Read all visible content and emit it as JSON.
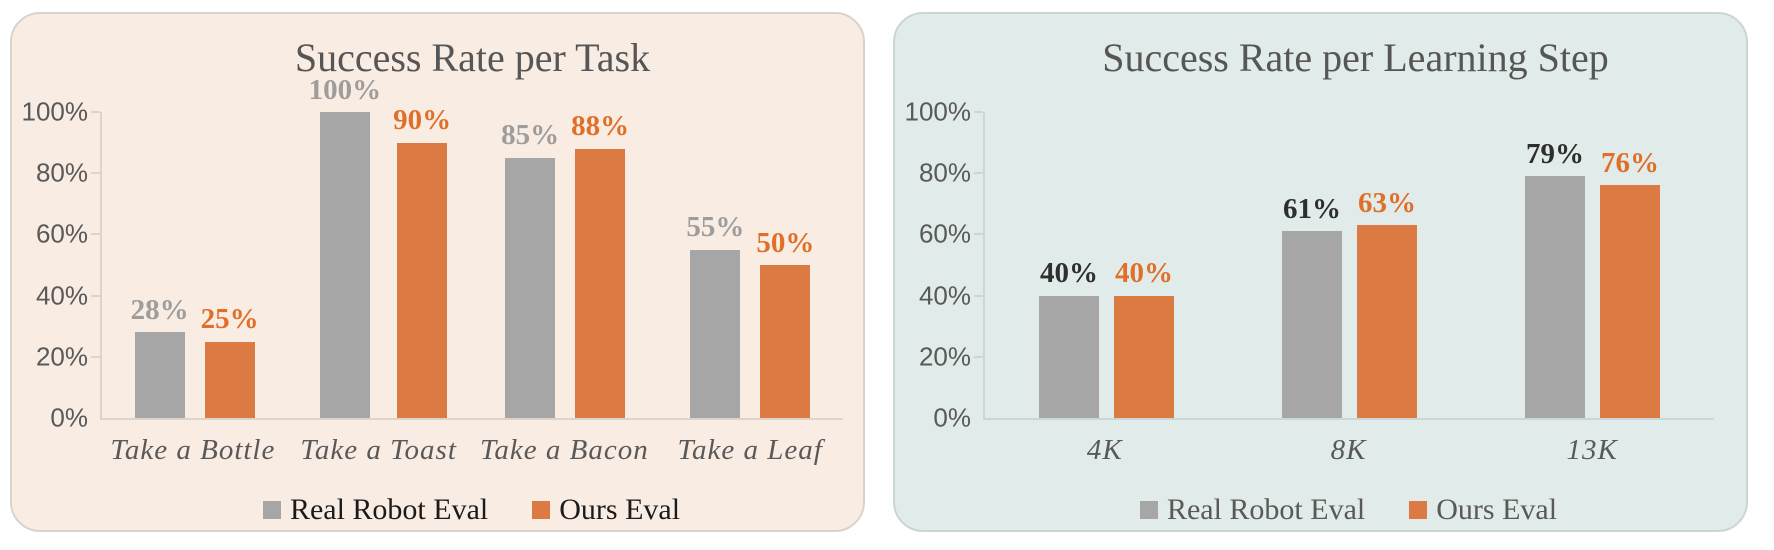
{
  "page": {
    "background": "#ffffff"
  },
  "chart_data": [
    {
      "type": "bar",
      "title": "Success Rate per Task",
      "categories": [
        "Take a Bottle",
        "Take a Toast",
        "Take a Bacon",
        "Take a Leaf"
      ],
      "series": [
        {
          "name": "Real Robot Eval",
          "color": "#a6a6a6",
          "label_color": "#9d9d9d",
          "values": [
            28,
            100,
            85,
            55
          ]
        },
        {
          "name": "Ours Eval",
          "color": "#db7b43",
          "label_color": "#df702a",
          "values": [
            25,
            90,
            88,
            50
          ]
        }
      ],
      "value_suffix": "%",
      "ylim": [
        0,
        100
      ],
      "ytick_values": [
        0,
        20,
        40,
        60,
        80,
        100
      ],
      "ytick_labels": [
        "0%",
        "20%",
        "40%",
        "60%",
        "80%",
        "100%"
      ],
      "grid": false,
      "legend_position": "bottom",
      "colors": {
        "card_bg": "#f9ece3",
        "card_border": "#d9d3cd",
        "axis": "#ded4cb",
        "tick_label": "#595959",
        "category_label": "#595959",
        "title": "#565656",
        "legend_text": "#1b1b1b"
      }
    },
    {
      "type": "bar",
      "title": "Success Rate per Learning Step",
      "categories": [
        "4K",
        "8K",
        "13K"
      ],
      "series": [
        {
          "name": "Real Robot Eval",
          "color": "#a6a6a6",
          "label_color": "#2e2e2e",
          "values": [
            40,
            61,
            79
          ]
        },
        {
          "name": "Ours Eval",
          "color": "#db7b43",
          "label_color": "#df702a",
          "values": [
            40,
            63,
            76
          ]
        }
      ],
      "value_suffix": "%",
      "ylim": [
        0,
        100
      ],
      "ytick_values": [
        0,
        20,
        40,
        60,
        80,
        100
      ],
      "ytick_labels": [
        "0%",
        "20%",
        "40%",
        "60%",
        "80%",
        "100%"
      ],
      "grid": false,
      "legend_position": "bottom",
      "colors": {
        "card_bg": "#e1ebe9",
        "card_border": "#cbd6d4",
        "axis": "#cbd7d4",
        "tick_label": "#595959",
        "category_label": "#595959",
        "title": "#565656",
        "legend_text": "#595959"
      }
    }
  ]
}
